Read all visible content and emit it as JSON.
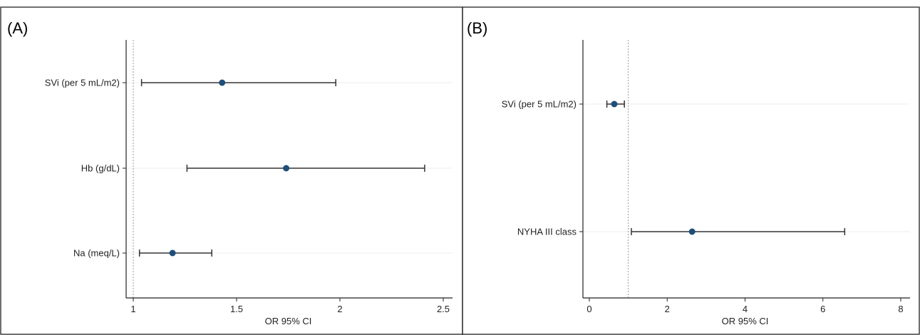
{
  "chart_data": [
    {
      "type": "forest",
      "panel_label": "(A)",
      "xlabel": "OR 95% CI",
      "xlim": [
        1,
        2.5
      ],
      "xticks": [
        1,
        1.5,
        2,
        2.5
      ],
      "xtick_labels": [
        "1",
        "1.5",
        "2",
        "2.5"
      ],
      "reference_line": 1,
      "rows": [
        {
          "label": "SVi (per 5 mL/m2)",
          "or": 1.43,
          "ci_low": 1.04,
          "ci_high": 1.98
        },
        {
          "label": "Hb (g/dL)",
          "or": 1.74,
          "ci_low": 1.26,
          "ci_high": 2.41
        },
        {
          "label": "Na (meq/L)",
          "or": 1.19,
          "ci_low": 1.03,
          "ci_high": 1.38
        }
      ]
    },
    {
      "type": "forest",
      "panel_label": "(B)",
      "xlabel": "OR 95% CI",
      "xlim": [
        0,
        8
      ],
      "xticks": [
        0,
        2,
        4,
        6,
        8
      ],
      "xtick_labels": [
        "0",
        "2",
        "4",
        "6",
        "8"
      ],
      "reference_line": 1,
      "rows": [
        {
          "label": "SVi (per 5 mL/m2)",
          "or": 0.64,
          "ci_low": 0.45,
          "ci_high": 0.9
        },
        {
          "label": "NYHA III class",
          "or": 2.64,
          "ci_low": 1.08,
          "ci_high": 6.56
        }
      ]
    }
  ],
  "colors": {
    "point": "#1f4e79",
    "ci": "#333333",
    "grid": "#ececec",
    "reference": "#999999"
  }
}
